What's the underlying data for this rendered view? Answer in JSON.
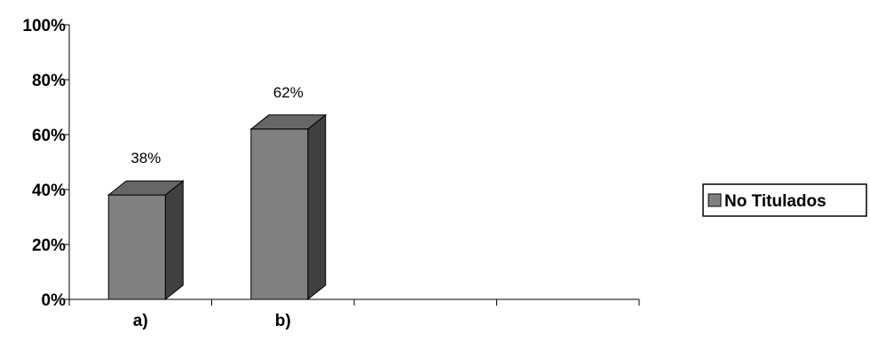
{
  "chart_data": {
    "type": "bar",
    "style": "3d-column",
    "categories": [
      "a)",
      "b)",
      "",
      ""
    ],
    "series": [
      {
        "name": "No Titulados",
        "values": [
          38,
          62,
          null,
          null
        ],
        "data_labels": [
          "38%",
          "62%",
          "",
          ""
        ]
      }
    ],
    "y_ticks": [
      "0%",
      "20%",
      "40%",
      "60%",
      "80%",
      "100%"
    ],
    "ylim": [
      0,
      100
    ],
    "grid": false,
    "legend_position": "right",
    "colors": {
      "bar_front": "#808080",
      "bar_top": "#666666",
      "bar_side": "#404040",
      "outline": "#000000"
    }
  }
}
